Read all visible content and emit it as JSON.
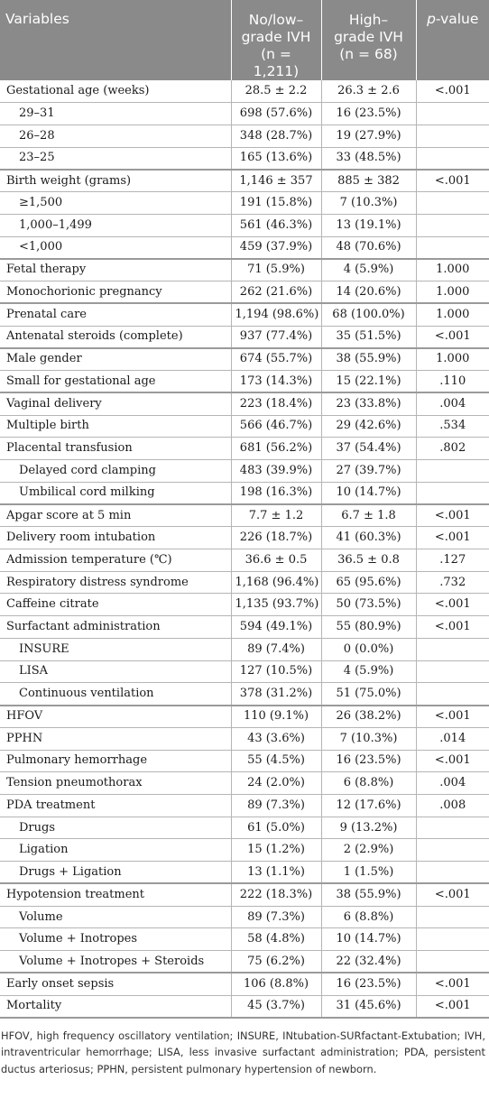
{
  "header": {
    "variables": "Variables",
    "col_a_line1": "No/low–",
    "col_a_line2": "grade IVH",
    "col_a_line3": "(n = 1,211)",
    "col_b_line1": "High–",
    "col_b_line2": "grade IVH",
    "col_b_line3": "(n = 68)",
    "col_p_italic": "p",
    "col_p_rest": "-value"
  },
  "rows": [
    {
      "label": "Gestational age (weeks)",
      "a": "28.5 ± 2.2",
      "b": "26.3 ± 2.6",
      "p": "<.001",
      "sub": false,
      "group": false
    },
    {
      "label": "29–31",
      "a": "698 (57.6%)",
      "b": "16 (23.5%)",
      "p": "",
      "sub": true,
      "group": false
    },
    {
      "label": "26–28",
      "a": "348 (28.7%)",
      "b": "19 (27.9%)",
      "p": "",
      "sub": true,
      "group": false
    },
    {
      "label": "23–25",
      "a": "165 (13.6%)",
      "b": "33 (48.5%)",
      "p": "",
      "sub": true,
      "group": false
    },
    {
      "label": "Birth weight (grams)",
      "a": "1,146 ± 357",
      "b": "885 ± 382",
      "p": "<.001",
      "sub": false,
      "group": true
    },
    {
      "label": "≥1,500",
      "a": "191 (15.8%)",
      "b": "7 (10.3%)",
      "p": "",
      "sub": true,
      "group": false
    },
    {
      "label": "1,000–1,499",
      "a": "561 (46.3%)",
      "b": "13 (19.1%)",
      "p": "",
      "sub": true,
      "group": false
    },
    {
      "label": "<1,000",
      "a": "459 (37.9%)",
      "b": "48 (70.6%)",
      "p": "",
      "sub": true,
      "group": false
    },
    {
      "label": "Fetal therapy",
      "a": "71 (5.9%)",
      "b": "4 (5.9%)",
      "p": "1.000",
      "sub": false,
      "group": true
    },
    {
      "label": "Monochorionic pregnancy",
      "a": "262 (21.6%)",
      "b": "14 (20.6%)",
      "p": "1.000",
      "sub": false,
      "group": false
    },
    {
      "label": "Prenatal care",
      "a": "1,194 (98.6%)",
      "b": "68 (100.0%)",
      "p": "1.000",
      "sub": false,
      "group": true
    },
    {
      "label": "Antenatal steroids (complete)",
      "a": "937 (77.4%)",
      "b": "35 (51.5%)",
      "p": "<.001",
      "sub": false,
      "group": false
    },
    {
      "label": "Male gender",
      "a": "674 (55.7%)",
      "b": "38 (55.9%)",
      "p": "1.000",
      "sub": false,
      "group": true
    },
    {
      "label": "Small for gestational age",
      "a": "173 (14.3%)",
      "b": "15 (22.1%)",
      "p": ".110",
      "sub": false,
      "group": false
    },
    {
      "label": "Vaginal delivery",
      "a": "223 (18.4%)",
      "b": "23 (33.8%)",
      "p": ".004",
      "sub": false,
      "group": true
    },
    {
      "label": "Multiple birth",
      "a": "566 (46.7%)",
      "b": "29 (42.6%)",
      "p": ".534",
      "sub": false,
      "group": false
    },
    {
      "label": "Placental transfusion",
      "a": "681 (56.2%)",
      "b": "37 (54.4%)",
      "p": ".802",
      "sub": false,
      "group": false
    },
    {
      "label": "Delayed cord clamping",
      "a": "483 (39.9%)",
      "b": "27 (39.7%)",
      "p": "",
      "sub": true,
      "group": false
    },
    {
      "label": "Umbilical cord milking",
      "a": "198 (16.3%)",
      "b": "10 (14.7%)",
      "p": "",
      "sub": true,
      "group": false
    },
    {
      "label": "Apgar score at 5 min",
      "a": "7.7 ± 1.2",
      "b": "6.7 ± 1.8",
      "p": "<.001",
      "sub": false,
      "group": true
    },
    {
      "label": "Delivery room intubation",
      "a": "226 (18.7%)",
      "b": "41 (60.3%)",
      "p": "<.001",
      "sub": false,
      "group": false
    },
    {
      "label": "Admission temperature (℃)",
      "a": "36.6 ± 0.5",
      "b": "36.5 ± 0.8",
      "p": ".127",
      "sub": false,
      "group": false
    },
    {
      "label": "Respiratory distress syndrome",
      "a": "1,168 (96.4%)",
      "b": "65 (95.6%)",
      "p": ".732",
      "sub": false,
      "group": false
    },
    {
      "label": "Caffeine citrate",
      "a": "1,135 (93.7%)",
      "b": "50 (73.5%)",
      "p": "<.001",
      "sub": false,
      "group": false
    },
    {
      "label": "Surfactant administration",
      "a": "594 (49.1%)",
      "b": "55 (80.9%)",
      "p": "<.001",
      "sub": false,
      "group": false
    },
    {
      "label": "INSURE",
      "a": "89 (7.4%)",
      "b": "0 (0.0%)",
      "p": "",
      "sub": true,
      "group": false
    },
    {
      "label": "LISA",
      "a": "127 (10.5%)",
      "b": "4 (5.9%)",
      "p": "",
      "sub": true,
      "group": false
    },
    {
      "label": "Continuous ventilation",
      "a": "378 (31.2%)",
      "b": "51 (75.0%)",
      "p": "",
      "sub": true,
      "group": false
    },
    {
      "label": "HFOV",
      "a": "110 (9.1%)",
      "b": "26 (38.2%)",
      "p": "<.001",
      "sub": false,
      "group": true
    },
    {
      "label": "PPHN",
      "a": "43 (3.6%)",
      "b": "7 (10.3%)",
      "p": ".014",
      "sub": false,
      "group": false
    },
    {
      "label": "Pulmonary hemorrhage",
      "a": "55 (4.5%)",
      "b": "16 (23.5%)",
      "p": "<.001",
      "sub": false,
      "group": false
    },
    {
      "label": "Tension pneumothorax",
      "a": "24 (2.0%)",
      "b": "6 (8.8%)",
      "p": ".004",
      "sub": false,
      "group": false
    },
    {
      "label": "PDA treatment",
      "a": "89 (7.3%)",
      "b": "12 (17.6%)",
      "p": ".008",
      "sub": false,
      "group": false
    },
    {
      "label": "Drugs",
      "a": "61 (5.0%)",
      "b": "9 (13.2%)",
      "p": "",
      "sub": true,
      "group": false
    },
    {
      "label": "Ligation",
      "a": "15 (1.2%)",
      "b": "2 (2.9%)",
      "p": "",
      "sub": true,
      "group": false
    },
    {
      "label": "Drugs + Ligation",
      "a": "13 (1.1%)",
      "b": "1 (1.5%)",
      "p": "",
      "sub": true,
      "group": false
    },
    {
      "label": "Hypotension treatment",
      "a": "222 (18.3%)",
      "b": "38 (55.9%)",
      "p": "<.001",
      "sub": false,
      "group": true
    },
    {
      "label": "Volume",
      "a": "89 (7.3%)",
      "b": "6 (8.8%)",
      "p": "",
      "sub": true,
      "group": false
    },
    {
      "label": "Volume + Inotropes",
      "a": "58 (4.8%)",
      "b": "10 (14.7%)",
      "p": "",
      "sub": true,
      "group": false
    },
    {
      "label": "Volume + Inotropes + Steroids",
      "a": "75 (6.2%)",
      "b": "22 (32.4%)",
      "p": "",
      "sub": true,
      "group": false
    },
    {
      "label": "Early onset sepsis",
      "a": "106 (8.8%)",
      "b": "16 (23.5%)",
      "p": "<.001",
      "sub": false,
      "group": true
    },
    {
      "label": "Mortality",
      "a": "45 (3.7%)",
      "b": "31 (45.6%)",
      "p": "<.001",
      "sub": false,
      "group": false
    }
  ],
  "footnote": "HFOV, high frequency oscillatory ventilation; INSURE, INtubation-SURfactant-Extubation; IVH, intraventricular hemorrhage; LISA, less invasive surfactant administration; PDA, persistent ductus arteriosus; PPHN, persistent pulmonary hypertension of newborn."
}
